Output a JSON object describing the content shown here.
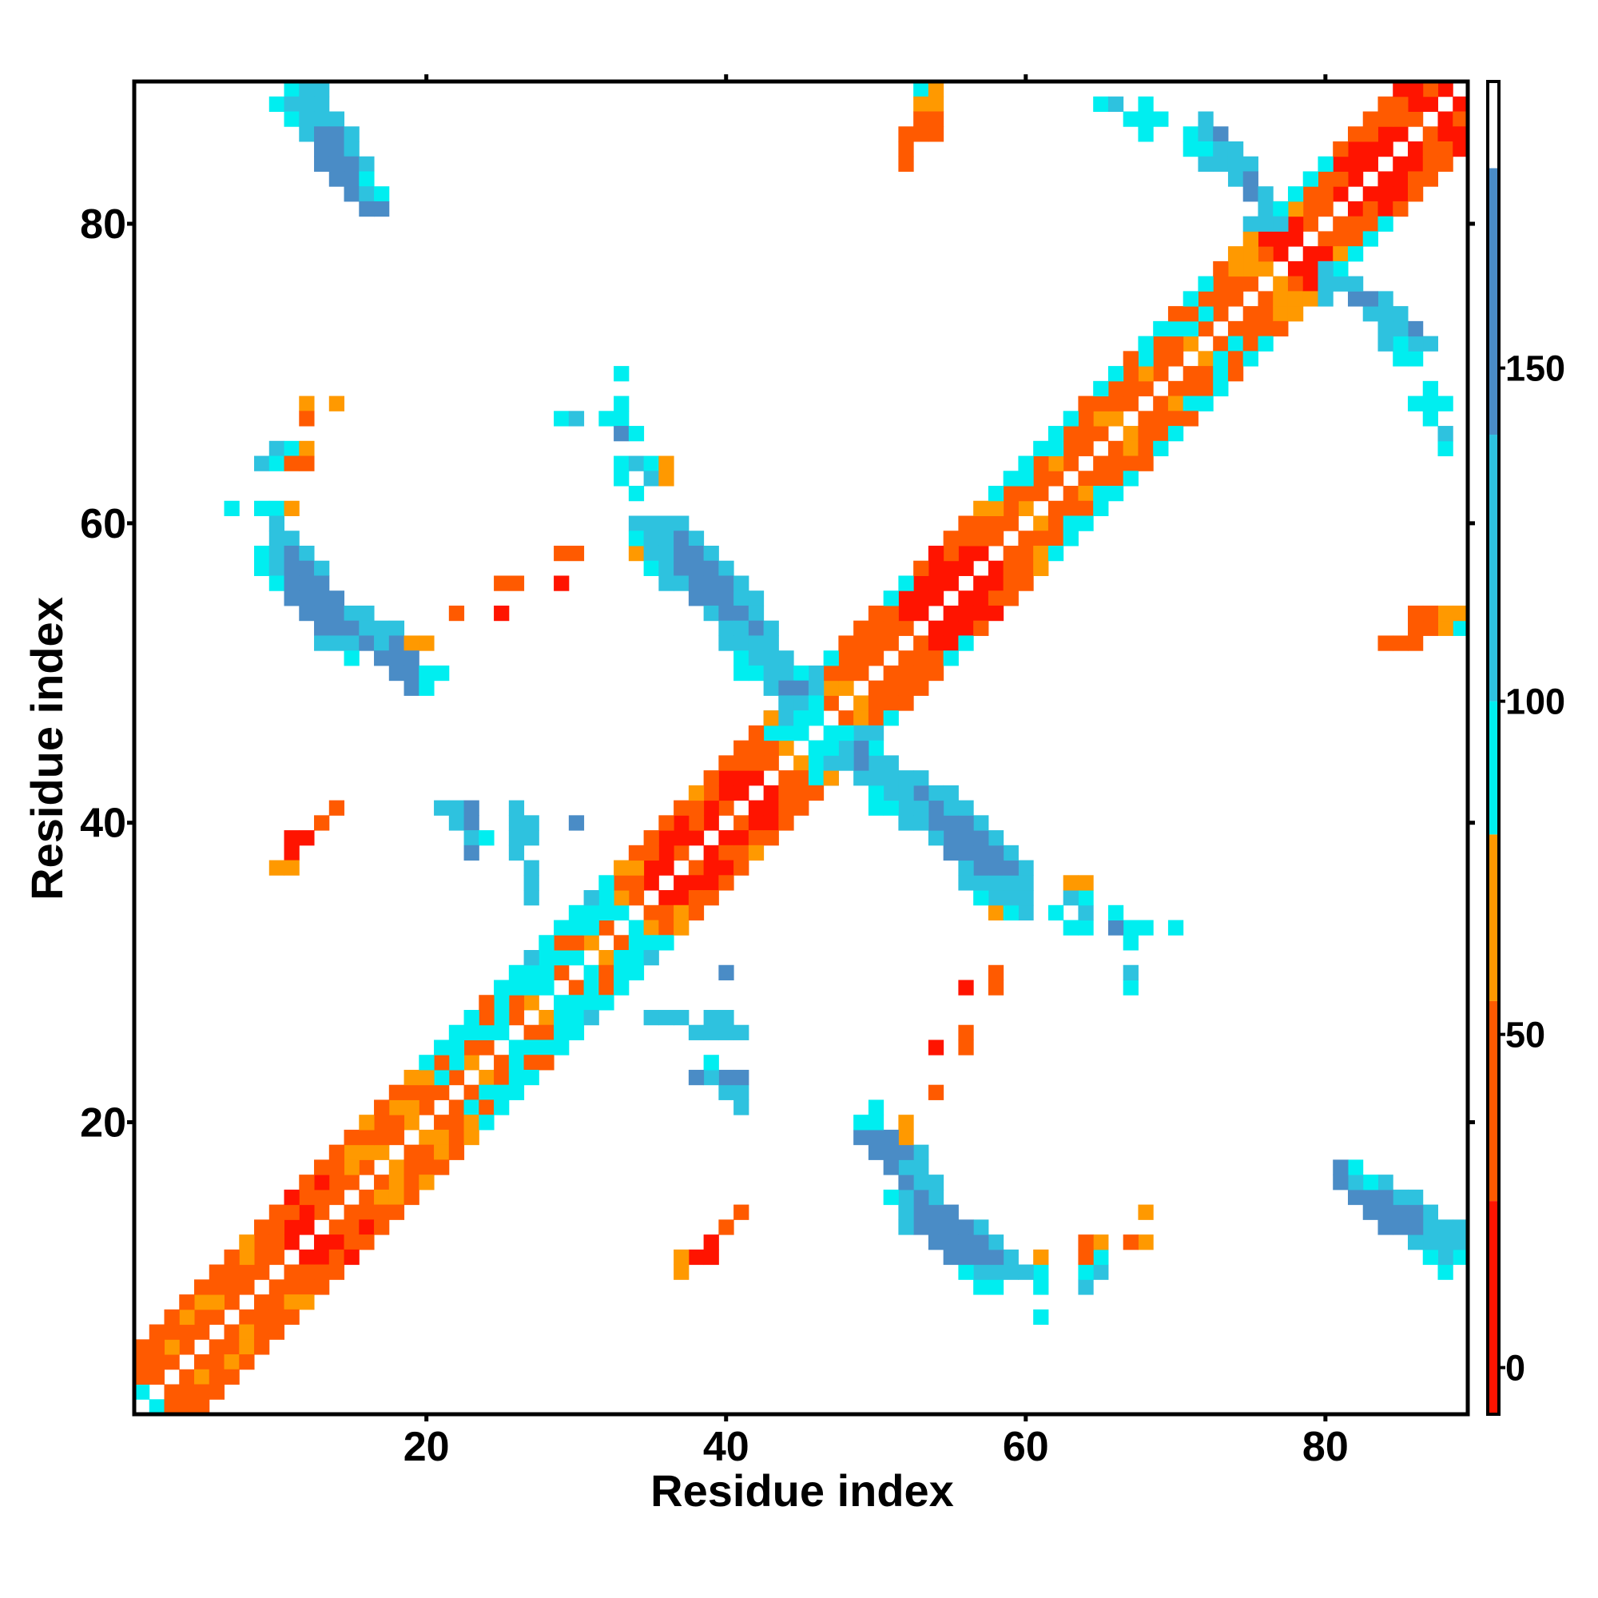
{
  "chart_data": {
    "type": "heatmap",
    "x_label": "Residue index",
    "y_label": "Residue index",
    "xlim": [
      0.5,
      89.5
    ],
    "ylim": [
      0.5,
      89.5
    ],
    "xticks": [
      20,
      40,
      60,
      80
    ],
    "yticks": [
      20,
      40,
      60,
      80
    ],
    "symmetric": true,
    "clim": [
      -7,
      193
    ],
    "cticks": [
      0,
      50,
      100,
      150
    ],
    "colorscale": [
      {
        "from": -7,
        "to": 25,
        "color": "#ff1400"
      },
      {
        "from": 25,
        "to": 55,
        "color": "#ff5a00"
      },
      {
        "from": 55,
        "to": 80,
        "color": "#ff9900"
      },
      {
        "from": 80,
        "to": 100,
        "color": "#00eef0"
      },
      {
        "from": 100,
        "to": 140,
        "color": "#2ec2df"
      },
      {
        "from": 140,
        "to": 180,
        "color": "#4a8cc6"
      },
      {
        "from": 180,
        "to": 193,
        "color": "#ffffff"
      }
    ],
    "diagonals": [
      {
        "offset": 1,
        "values": [
          90,
          40,
          40,
          40,
          40,
          40,
          40,
          40,
          40,
          40,
          10,
          10,
          40,
          40,
          40,
          40,
          65,
          40,
          65,
          40,
          40,
          40,
          65,
          40,
          90,
          40,
          65,
          90,
          40,
          90,
          65,
          40,
          90,
          40,
          10,
          10,
          40,
          10,
          10,
          40,
          10,
          10,
          40,
          65,
          90,
          90,
          40,
          65,
          40,
          40,
          40,
          40,
          10,
          10,
          10,
          10,
          10,
          40,
          40,
          65,
          40,
          40,
          40,
          40,
          40,
          65,
          40,
          40,
          40,
          40,
          65,
          40,
          40,
          40,
          40,
          65,
          10,
          10,
          40,
          40,
          10,
          10,
          10,
          10,
          10,
          40,
          10,
          10
        ]
      },
      {
        "offset": 2,
        "values": [
          40,
          40,
          65,
          40,
          40,
          65,
          40,
          40,
          40,
          40,
          10,
          10,
          40,
          40,
          65,
          65,
          40,
          40,
          65,
          40,
          90,
          90,
          40,
          90,
          90,
          40,
          90,
          90,
          90,
          40,
          90,
          90,
          65,
          40,
          10,
          10,
          10,
          40,
          10,
          10,
          10,
          40,
          40,
          90,
          90,
          90,
          65,
          40,
          40,
          40,
          40,
          10,
          10,
          10,
          10,
          10,
          40,
          40,
          40,
          40,
          40,
          65,
          40,
          40,
          65,
          40,
          40,
          65,
          40,
          40,
          90,
          90,
          40,
          40,
          65,
          40,
          10,
          10,
          40,
          40,
          40,
          10,
          10,
          10,
          40,
          10,
          40
        ]
      },
      {
        "offset": 3,
        "values": [
          40,
          40,
          40,
          65,
          65,
          40,
          40,
          65,
          40,
          40,
          40,
          40,
          10,
          40,
          65,
          40,
          40,
          65,
          40,
          65,
          40,
          90,
          90,
          40,
          90,
          90,
          90,
          90,
          40,
          90,
          90,
          90,
          40,
          65,
          40,
          10,
          10,
          40,
          40,
          10,
          40,
          40,
          90,
          90,
          115,
          90,
          40,
          40,
          40,
          40,
          40,
          10,
          10,
          10,
          40,
          40,
          40,
          65,
          40,
          90,
          40,
          90,
          40,
          40,
          40,
          40,
          40,
          90,
          40,
          90,
          40,
          40,
          40,
          65,
          65,
          10,
          40,
          65,
          40,
          40,
          10,
          10,
          40,
          40,
          40,
          10
        ]
      },
      {
        "offset": 4,
        "values": [
          40,
          40,
          40,
          40,
          40,
          40,
          40,
          65,
          40,
          40,
          10,
          40,
          40,
          40,
          40,
          65,
          40,
          40,
          65,
          90,
          90,
          90,
          90,
          40,
          90,
          90,
          115,
          90,
          90,
          90,
          115,
          90,
          65,
          40,
          40,
          40,
          40,
          65,
          40,
          40,
          40,
          40,
          115,
          115,
          115,
          115,
          90,
          40,
          40,
          40,
          90,
          90,
          40,
          10,
          40,
          40,
          65,
          90,
          90,
          90,
          90,
          90,
          90,
          40,
          90,
          90,
          40,
          90,
          90,
          40,
          90,
          90,
          40,
          65,
          65,
          40,
          40,
          90,
          90,
          90,
          40,
          40,
          40,
          40,
          10
        ]
      }
    ],
    "cells": [
      [
        11,
        89,
        90
      ],
      [
        12,
        89,
        115
      ],
      [
        13,
        89,
        115
      ],
      [
        10,
        88,
        90
      ],
      [
        11,
        88,
        115
      ],
      [
        12,
        88,
        115
      ],
      [
        13,
        88,
        115
      ],
      [
        11,
        87,
        90
      ],
      [
        12,
        87,
        115
      ],
      [
        13,
        87,
        115
      ],
      [
        14,
        87,
        115
      ],
      [
        12,
        86,
        115
      ],
      [
        13,
        86,
        160
      ],
      [
        14,
        86,
        160
      ],
      [
        15,
        86,
        115
      ],
      [
        13,
        85,
        160
      ],
      [
        14,
        85,
        160
      ],
      [
        15,
        85,
        115
      ],
      [
        13,
        84,
        160
      ],
      [
        14,
        84,
        160
      ],
      [
        15,
        84,
        160
      ],
      [
        16,
        84,
        115
      ],
      [
        14,
        83,
        160
      ],
      [
        15,
        83,
        160
      ],
      [
        16,
        83,
        90
      ],
      [
        15,
        82,
        160
      ],
      [
        16,
        82,
        115
      ],
      [
        17,
        82,
        90
      ],
      [
        16,
        81,
        160
      ],
      [
        17,
        81,
        160
      ],
      [
        12,
        68,
        65
      ],
      [
        14,
        68,
        65
      ],
      [
        12,
        67,
        40
      ],
      [
        10,
        65,
        115
      ],
      [
        11,
        65,
        90
      ],
      [
        12,
        65,
        65
      ],
      [
        9,
        64,
        115
      ],
      [
        10,
        64,
        90
      ],
      [
        11,
        64,
        40
      ],
      [
        12,
        64,
        40
      ],
      [
        7,
        61,
        90
      ],
      [
        9,
        61,
        90
      ],
      [
        10,
        61,
        90
      ],
      [
        11,
        61,
        65
      ],
      [
        10,
        60,
        115
      ],
      [
        10,
        59,
        115
      ],
      [
        11,
        59,
        115
      ],
      [
        9,
        58,
        90
      ],
      [
        10,
        58,
        115
      ],
      [
        11,
        58,
        160
      ],
      [
        12,
        58,
        115
      ],
      [
        9,
        57,
        90
      ],
      [
        10,
        57,
        115
      ],
      [
        11,
        57,
        160
      ],
      [
        12,
        57,
        160
      ],
      [
        13,
        57,
        115
      ],
      [
        10,
        56,
        90
      ],
      [
        11,
        56,
        160
      ],
      [
        12,
        56,
        160
      ],
      [
        13,
        56,
        160
      ],
      [
        11,
        55,
        160
      ],
      [
        12,
        55,
        160
      ],
      [
        13,
        55,
        160
      ],
      [
        14,
        55,
        160
      ],
      [
        12,
        54,
        160
      ],
      [
        13,
        54,
        160
      ],
      [
        14,
        54,
        160
      ],
      [
        15,
        54,
        115
      ],
      [
        16,
        54,
        115
      ],
      [
        13,
        53,
        160
      ],
      [
        14,
        53,
        160
      ],
      [
        15,
        53,
        160
      ],
      [
        16,
        53,
        115
      ],
      [
        17,
        53,
        115
      ],
      [
        18,
        53,
        115
      ],
      [
        13,
        52,
        115
      ],
      [
        14,
        52,
        115
      ],
      [
        15,
        52,
        115
      ],
      [
        16,
        52,
        160
      ],
      [
        17,
        52,
        115
      ],
      [
        18,
        52,
        160
      ],
      [
        19,
        52,
        65
      ],
      [
        20,
        52,
        65
      ],
      [
        15,
        51,
        90
      ],
      [
        17,
        51,
        160
      ],
      [
        18,
        51,
        160
      ],
      [
        19,
        51,
        160
      ],
      [
        18,
        50,
        160
      ],
      [
        19,
        50,
        160
      ],
      [
        20,
        50,
        90
      ],
      [
        21,
        50,
        90
      ],
      [
        19,
        49,
        160
      ],
      [
        20,
        49,
        90
      ],
      [
        14,
        41,
        40
      ],
      [
        13,
        40,
        40
      ],
      [
        11,
        39,
        10
      ],
      [
        12,
        39,
        10
      ],
      [
        11,
        38,
        10
      ],
      [
        10,
        37,
        65
      ],
      [
        11,
        37,
        65
      ],
      [
        29,
        58,
        40
      ],
      [
        30,
        58,
        40
      ],
      [
        25,
        56,
        40
      ],
      [
        26,
        56,
        40
      ],
      [
        29,
        56,
        10
      ],
      [
        22,
        54,
        40
      ],
      [
        25,
        54,
        10
      ],
      [
        34,
        58,
        65
      ],
      [
        33,
        70,
        90
      ],
      [
        33,
        68,
        90
      ],
      [
        29,
        67,
        90
      ],
      [
        30,
        67,
        115
      ],
      [
        32,
        67,
        90
      ],
      [
        33,
        67,
        90
      ],
      [
        33,
        66,
        160
      ],
      [
        34,
        66,
        90
      ],
      [
        33,
        64,
        90
      ],
      [
        34,
        64,
        115
      ],
      [
        35,
        64,
        90
      ],
      [
        36,
        64,
        65
      ],
      [
        33,
        63,
        90
      ],
      [
        35,
        63,
        115
      ],
      [
        36,
        63,
        65
      ],
      [
        34,
        62,
        90
      ],
      [
        34,
        60,
        115
      ],
      [
        35,
        60,
        115
      ],
      [
        36,
        60,
        115
      ],
      [
        37,
        60,
        115
      ],
      [
        34,
        59,
        90
      ],
      [
        35,
        59,
        115
      ],
      [
        36,
        59,
        115
      ],
      [
        37,
        59,
        160
      ],
      [
        38,
        59,
        115
      ],
      [
        35,
        58,
        115
      ],
      [
        36,
        58,
        115
      ],
      [
        37,
        58,
        160
      ],
      [
        38,
        58,
        160
      ],
      [
        39,
        58,
        115
      ],
      [
        35,
        57,
        90
      ],
      [
        36,
        57,
        115
      ],
      [
        37,
        57,
        160
      ],
      [
        38,
        57,
        160
      ],
      [
        39,
        57,
        160
      ],
      [
        40,
        57,
        115
      ],
      [
        36,
        56,
        115
      ],
      [
        37,
        56,
        115
      ],
      [
        38,
        56,
        160
      ],
      [
        39,
        56,
        160
      ],
      [
        40,
        56,
        160
      ],
      [
        41,
        56,
        115
      ],
      [
        38,
        55,
        160
      ],
      [
        39,
        55,
        160
      ],
      [
        40,
        55,
        160
      ],
      [
        41,
        55,
        115
      ],
      [
        42,
        55,
        115
      ],
      [
        39,
        54,
        115
      ],
      [
        40,
        54,
        160
      ],
      [
        41,
        54,
        160
      ],
      [
        42,
        54,
        115
      ],
      [
        40,
        53,
        115
      ],
      [
        41,
        53,
        115
      ],
      [
        42,
        53,
        160
      ],
      [
        43,
        53,
        115
      ],
      [
        40,
        52,
        115
      ],
      [
        41,
        52,
        115
      ],
      [
        42,
        52,
        115
      ],
      [
        43,
        52,
        115
      ],
      [
        41,
        51,
        90
      ],
      [
        42,
        51,
        115
      ],
      [
        43,
        51,
        115
      ],
      [
        44,
        51,
        115
      ],
      [
        41,
        50,
        90
      ],
      [
        42,
        50,
        90
      ],
      [
        43,
        50,
        115
      ],
      [
        44,
        50,
        115
      ],
      [
        45,
        50,
        90
      ],
      [
        43,
        49,
        115
      ],
      [
        44,
        49,
        160
      ],
      [
        45,
        49,
        160
      ],
      [
        46,
        49,
        115
      ],
      [
        44,
        48,
        115
      ],
      [
        45,
        48,
        115
      ],
      [
        46,
        48,
        90
      ],
      [
        43,
        47,
        65
      ],
      [
        44,
        47,
        115
      ],
      [
        45,
        47,
        90
      ],
      [
        45,
        46,
        90
      ],
      [
        21,
        41,
        115
      ],
      [
        22,
        41,
        115
      ],
      [
        23,
        41,
        160
      ],
      [
        26,
        41,
        115
      ],
      [
        22,
        40,
        115
      ],
      [
        23,
        40,
        160
      ],
      [
        26,
        40,
        115
      ],
      [
        27,
        40,
        115
      ],
      [
        30,
        40,
        160
      ],
      [
        23,
        39,
        115
      ],
      [
        24,
        39,
        90
      ],
      [
        26,
        39,
        115
      ],
      [
        27,
        39,
        115
      ],
      [
        23,
        38,
        160
      ],
      [
        26,
        38,
        115
      ],
      [
        27,
        37,
        115
      ],
      [
        27,
        36,
        115
      ],
      [
        27,
        35,
        115
      ],
      [
        53,
        89,
        90
      ],
      [
        54,
        89,
        65
      ],
      [
        53,
        88,
        65
      ],
      [
        54,
        88,
        65
      ],
      [
        53,
        87,
        40
      ],
      [
        54,
        87,
        40
      ],
      [
        52,
        86,
        40
      ],
      [
        53,
        86,
        40
      ],
      [
        54,
        86,
        40
      ],
      [
        52,
        85,
        40
      ],
      [
        52,
        84,
        40
      ],
      [
        65,
        88,
        90
      ],
      [
        66,
        88,
        115
      ],
      [
        68,
        88,
        90
      ],
      [
        67,
        87,
        90
      ],
      [
        68,
        87,
        90
      ],
      [
        69,
        87,
        90
      ],
      [
        68,
        86,
        90
      ],
      [
        72,
        87,
        115
      ],
      [
        71,
        86,
        90
      ],
      [
        72,
        86,
        115
      ],
      [
        73,
        86,
        160
      ],
      [
        71,
        85,
        90
      ],
      [
        72,
        85,
        90
      ],
      [
        73,
        85,
        115
      ],
      [
        74,
        85,
        115
      ],
      [
        72,
        84,
        115
      ],
      [
        73,
        84,
        115
      ],
      [
        74,
        84,
        115
      ],
      [
        75,
        84,
        115
      ],
      [
        74,
        83,
        115
      ],
      [
        75,
        83,
        160
      ],
      [
        75,
        82,
        160
      ],
      [
        76,
        82,
        115
      ],
      [
        76,
        81,
        115
      ],
      [
        77,
        81,
        90
      ],
      [
        75,
        80,
        115
      ],
      [
        76,
        80,
        115
      ],
      [
        77,
        80,
        115
      ]
    ]
  }
}
